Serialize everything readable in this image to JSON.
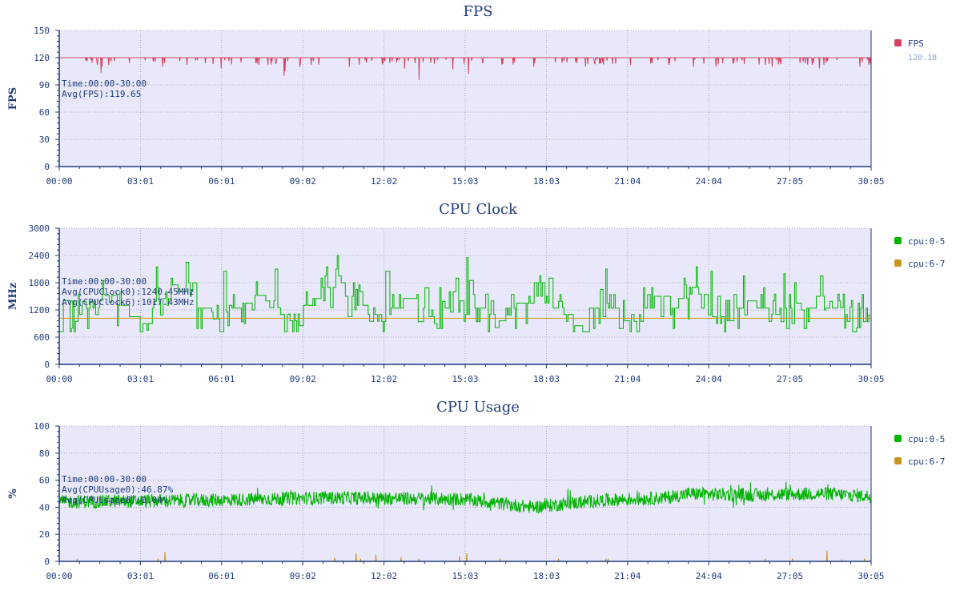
{
  "colors": {
    "plot_bg": "#e8e8fa",
    "axis": "#1f3a7a",
    "grid": "#9a9ab0",
    "green": "#00b400",
    "orange": "#c8961e",
    "red": "#d2445f"
  },
  "x_ticks": [
    "00:00",
    "03:01",
    "06:01",
    "09:02",
    "12:02",
    "15:03",
    "18:03",
    "21:04",
    "24:04",
    "27:05",
    "30:05"
  ],
  "chart_data": [
    {
      "type": "line",
      "title": "FPS",
      "ylabel": "FPS",
      "ylim": [
        0,
        150
      ],
      "y_ticks": [
        "0",
        "30",
        "60",
        "90",
        "120",
        "150"
      ],
      "xlim_seconds": [
        0,
        1805
      ],
      "series": [
        {
          "name": "FPS",
          "color": "#d2445f",
          "baseline": 120,
          "dips": [
            [
              70,
              118
            ],
            [
              85,
              112
            ],
            [
              93,
              103
            ],
            [
              95,
              110
            ],
            [
              110,
              112
            ],
            [
              230,
              110
            ],
            [
              360,
              108
            ],
            [
              437,
              114
            ],
            [
              444,
              112
            ],
            [
              500,
              100
            ],
            [
              502,
              105
            ],
            [
              535,
              110
            ],
            [
              560,
              112
            ],
            [
              645,
              110
            ],
            [
              720,
              114
            ],
            [
              768,
              108
            ],
            [
              800,
              95
            ],
            [
              875,
              107
            ],
            [
              910,
              102
            ],
            [
              1055,
              110
            ],
            [
              1170,
              110
            ],
            [
              1190,
              114
            ],
            [
              1270,
              112
            ],
            [
              1355,
              112
            ],
            [
              1410,
              110
            ],
            [
              1460,
              110
            ],
            [
              1475,
              114
            ],
            [
              1570,
              112
            ],
            [
              1585,
              110
            ],
            [
              1690,
              108
            ],
            [
              1700,
              112
            ],
            [
              1780,
              110
            ],
            [
              1800,
              112
            ]
          ]
        }
      ],
      "legend": [
        {
          "label": "FPS",
          "sub": "120.18",
          "color": "#d2445f"
        }
      ],
      "annotation": [
        "Time:00:00-30:00",
        "Avg(FPS):119.65"
      ]
    },
    {
      "type": "line",
      "title": "CPU Clock",
      "ylabel": "MHz",
      "ylim": [
        0,
        3000
      ],
      "y_ticks": [
        "0",
        "600",
        "1200",
        "1800",
        "2400",
        "3000"
      ],
      "xlim_seconds": [
        0,
        1805
      ],
      "series": [
        {
          "name": "cpu:0-5",
          "color": "#00b400",
          "levels": [
            960,
            1100,
            1240,
            1400,
            1520,
            1300,
            1050,
            900,
            1240,
            1450,
            1600,
            1800,
            1240,
            1000,
            850,
            1240,
            1350,
            1520,
            1250,
            1100,
            960,
            1300,
            1450,
            1700,
            2100,
            1500,
            1300,
            1100,
            950,
            1240,
            1450,
            1240,
            1050,
            1240,
            1600,
            1400,
            1240,
            1100,
            960,
            1240,
            1350,
            1800,
            1500,
            1240,
            1100,
            850,
            1240,
            1350,
            1240,
            960,
            1100,
            1240,
            1500,
            1240,
            1450,
            1700,
            1240,
            1050,
            960,
            1240,
            1400,
            1240,
            1100,
            1240,
            1350,
            1240,
            1500,
            1240,
            1100,
            960,
            1240
          ],
          "spikes": [
            [
              215,
              2150
            ],
            [
              250,
              1900
            ],
            [
              365,
              2050
            ],
            [
              480,
              2100
            ],
            [
              590,
              1950
            ],
            [
              725,
              2050
            ],
            [
              905,
              2350
            ],
            [
              1090,
              1900
            ],
            [
              1215,
              2100
            ],
            [
              1450,
              2050
            ],
            [
              1520,
              1950
            ],
            [
              1610,
              2000
            ],
            [
              1775,
              1350
            ]
          ]
        },
        {
          "name": "cpu:6-7",
          "color": "#c8961e",
          "value": 1017
        }
      ],
      "legend": [
        {
          "label": "cpu:0-5",
          "color": "#00b400"
        },
        {
          "label": "cpu:6-7",
          "color": "#c8961e"
        }
      ],
      "annotation": [
        "Time:00:00-30:00",
        "Avg(CPUClock0):1240.45MHz",
        "Avg(CPUClock6):1017.43MHz"
      ]
    },
    {
      "type": "line",
      "title": "CPU Usage",
      "ylabel": "%",
      "ylim": [
        0,
        100
      ],
      "y_ticks": [
        "0",
        "20",
        "40",
        "60",
        "80",
        "100"
      ],
      "xlim_seconds": [
        0,
        1805
      ],
      "series": [
        {
          "name": "cpu:0-5",
          "color": "#00b400",
          "mean": 46.87,
          "trend": [
            [
              0,
              44
            ],
            [
              300,
              45
            ],
            [
              600,
              47
            ],
            [
              900,
              46
            ],
            [
              1050,
              40
            ],
            [
              1200,
              45
            ],
            [
              1350,
              47
            ],
            [
              1400,
              50
            ],
            [
              1550,
              49
            ],
            [
              1700,
              50
            ],
            [
              1805,
              48
            ]
          ]
        },
        {
          "name": "cpu:6-7",
          "color": "#c8961e",
          "mean": 0.04,
          "spikes": [
            [
              40,
              2
            ],
            [
              220,
              2
            ],
            [
              235,
              7
            ],
            [
              612,
              2
            ],
            [
              613,
              2
            ],
            [
              660,
              6
            ],
            [
              670,
              2
            ],
            [
              704,
              5
            ],
            [
              760,
              3
            ],
            [
              800,
              2
            ],
            [
              890,
              4
            ],
            [
              906,
              6
            ],
            [
              980,
              2
            ],
            [
              1110,
              2
            ],
            [
              1215,
              2
            ],
            [
              1220,
              2
            ],
            [
              1570,
              2
            ],
            [
              1630,
              2
            ],
            [
              1707,
              8
            ],
            [
              1740,
              1
            ],
            [
              1790,
              2
            ]
          ]
        }
      ],
      "legend": [
        {
          "label": "cpu:0-5",
          "color": "#00b400"
        },
        {
          "label": "cpu:6-7",
          "color": "#c8961e"
        }
      ],
      "annotation": [
        "Time:00:00-30:00",
        "Avg(CPUUsage0):46.87%",
        "Avg(CPUUsage6):0.04%"
      ]
    }
  ]
}
